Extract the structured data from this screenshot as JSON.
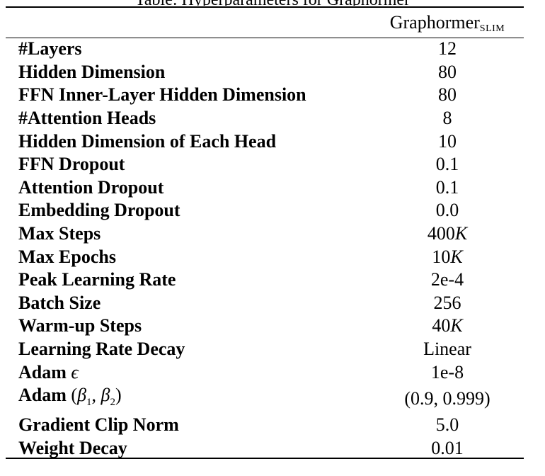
{
  "caption_fragment": "Table: Hyperparameters for Graphormer",
  "header": {
    "model_name": "Graphormer",
    "model_subscript": "SLIM"
  },
  "rows": [
    {
      "name": "#Layers",
      "value": "12"
    },
    {
      "name": "Hidden Dimension",
      "value": "80"
    },
    {
      "name": "FFN Inner-Layer Hidden Dimension",
      "value": "80"
    },
    {
      "name": "#Attention Heads",
      "value": "8"
    },
    {
      "name": "Hidden Dimension of Each Head",
      "value": "10"
    },
    {
      "name": "FFN Dropout",
      "value": "0.1"
    },
    {
      "name": "Attention Dropout",
      "value": "0.1"
    },
    {
      "name": "Embedding Dropout",
      "value": "0.0"
    },
    {
      "name": "Max Steps",
      "value_num": "400",
      "value_unit": "K"
    },
    {
      "name": "Max Epochs",
      "value_num": "10",
      "value_unit": "K"
    },
    {
      "name": "Peak Learning Rate",
      "value": "2e-4"
    },
    {
      "name": "Batch Size",
      "value": "256"
    },
    {
      "name": "Warm-up Steps",
      "value_num": "40",
      "value_unit": "K"
    },
    {
      "name": "Learning Rate Decay",
      "value": "Linear"
    },
    {
      "name_text": "Adam",
      "name_symbol": "ϵ",
      "value": "1e-8"
    },
    {
      "name_text": "Adam",
      "name_symbol_1": "β",
      "name_sub_1": "1",
      "name_symbol_2": "β",
      "name_sub_2": "2",
      "value": "(0.9, 0.999)"
    },
    {
      "name": "Gradient Clip Norm",
      "value": "5.0"
    },
    {
      "name": "Weight Decay",
      "value": "0.01"
    }
  ]
}
